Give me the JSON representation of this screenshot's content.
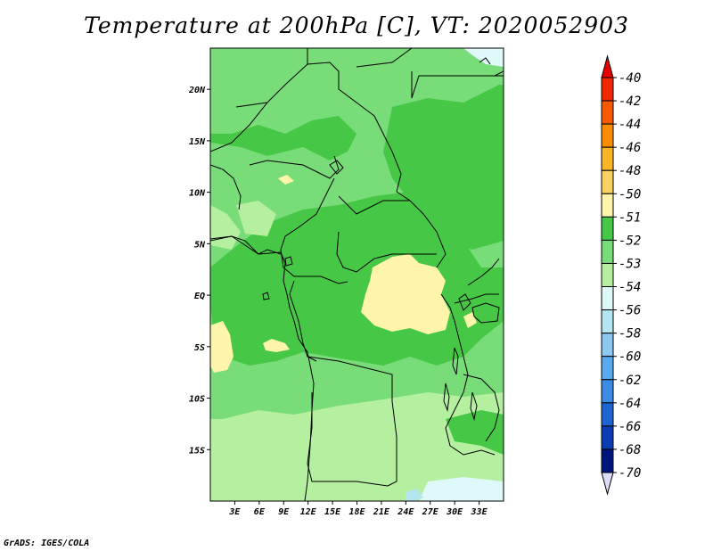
{
  "title": "Temperature at 200hPa [C], VT: 2020052903",
  "credit": "GrADS: IGES/COLA",
  "map": {
    "lon_range": [
      0,
      36
    ],
    "lat_range": [
      -20,
      24
    ],
    "lon_ticks": [
      3,
      6,
      9,
      12,
      15,
      18,
      21,
      24,
      27,
      30,
      33
    ],
    "lon_tick_labels": [
      "3E",
      "6E",
      "9E",
      "12E",
      "15E",
      "18E",
      "21E",
      "24E",
      "27E",
      "30E",
      "33E"
    ],
    "lat_ticks": [
      20,
      15,
      10,
      5,
      0,
      -5,
      -10,
      -15
    ],
    "lat_tick_labels": [
      "20N",
      "15N",
      "10N",
      "5N",
      "EQ",
      "5S",
      "10S",
      "15S"
    ],
    "field_colors": {
      "le_-54": "#c8f5b4",
      "-54_-53": "#b4f0a0",
      "-53_-52": "#78dc78",
      "-52_-51": "#46c846",
      "-51_-50": "#fff5aa",
      "-56_-54": "#dff8f8",
      "-58_-56": "#b4e6f0"
    }
  },
  "colorbar": {
    "labels": [
      "-40",
      "-42",
      "-44",
      "-46",
      "-48",
      "-50",
      "-51",
      "-52",
      "-53",
      "-54",
      "-56",
      "-58",
      "-60",
      "-62",
      "-64",
      "-66",
      "-68",
      "-70"
    ],
    "top_color": "#e60000",
    "bottom_color": "#dcdcf5",
    "colors": [
      "#f02800",
      "#f55a00",
      "#fa8c00",
      "#fab428",
      "#fad264",
      "#fff5aa",
      "#46c846",
      "#78dc78",
      "#b4f0a0",
      "#dff8f8",
      "#b4e6f0",
      "#8cc8f0",
      "#5aaaf0",
      "#3c8ce6",
      "#1e64d2",
      "#0a3cb4",
      "#00147d"
    ]
  }
}
